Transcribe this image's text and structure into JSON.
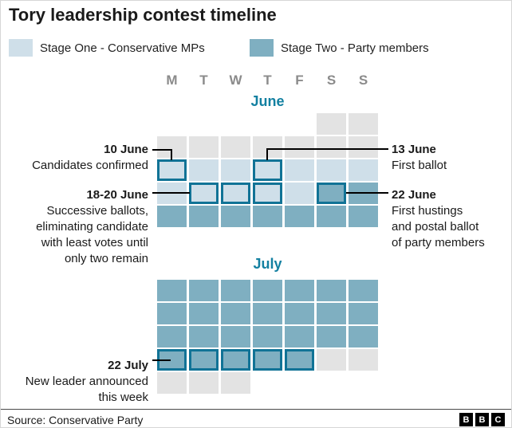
{
  "title": "Tory leadership contest timeline",
  "legend": {
    "stage_one": {
      "label": "Stage One - Conservative MPs",
      "color": "#cfdfe9"
    },
    "stage_two": {
      "label": "Stage Two - Party members",
      "color": "#7fafc1"
    }
  },
  "colors": {
    "off_day": "#e3e3e3",
    "highlight_border": "#117396",
    "month_label": "#1380a1",
    "connector_line": "#000000"
  },
  "weekday_headers": [
    "M",
    "T",
    "W",
    "T",
    "F",
    "S",
    "S"
  ],
  "calendar": {
    "june": {
      "label": "June",
      "rows": [
        [
          "empty",
          "empty",
          "empty",
          "empty",
          "empty",
          "off",
          "off"
        ],
        [
          "off",
          "off",
          "off",
          "off",
          "off",
          "off",
          "off"
        ],
        [
          "s1 hl",
          "s1",
          "s1",
          "s1 hl",
          "s1",
          "s1",
          "s1"
        ],
        [
          "s1",
          "s1 hl",
          "s1 hl",
          "s1 hl",
          "s1",
          "s2 hl",
          "s2"
        ],
        [
          "s2",
          "s2",
          "s2",
          "s2",
          "s2",
          "s2",
          "s2"
        ]
      ]
    },
    "july": {
      "label": "July",
      "rows": [
        [
          "s2",
          "s2",
          "s2",
          "s2",
          "s2",
          "s2",
          "s2"
        ],
        [
          "s2",
          "s2",
          "s2",
          "s2",
          "s2",
          "s2",
          "s2"
        ],
        [
          "s2",
          "s2",
          "s2",
          "s2",
          "s2",
          "s2",
          "s2"
        ],
        [
          "s2 hl",
          "s2 hl",
          "s2 hl",
          "s2 hl",
          "s2 hl",
          "off",
          "off"
        ],
        [
          "off",
          "off",
          "off",
          "empty",
          "empty",
          "empty",
          "empty"
        ]
      ]
    }
  },
  "annotations": {
    "june10": {
      "date": "10 June",
      "lines": [
        "Candidates confirmed"
      ]
    },
    "june13": {
      "date": "13 June",
      "lines": [
        "First ballot"
      ]
    },
    "june1820": {
      "date": "18-20 June",
      "lines": [
        "Successive ballots,",
        "eliminating candidate",
        "with least votes until",
        "only two remain"
      ]
    },
    "june22": {
      "date": "22 June",
      "lines": [
        "First hustings",
        "and postal ballot",
        "of party members"
      ]
    },
    "july22": {
      "date": "22 July",
      "lines": [
        "New leader announced",
        "this week"
      ]
    }
  },
  "footer": {
    "source": "Source: Conservative Party",
    "logo_letters": [
      "B",
      "B",
      "C"
    ]
  }
}
